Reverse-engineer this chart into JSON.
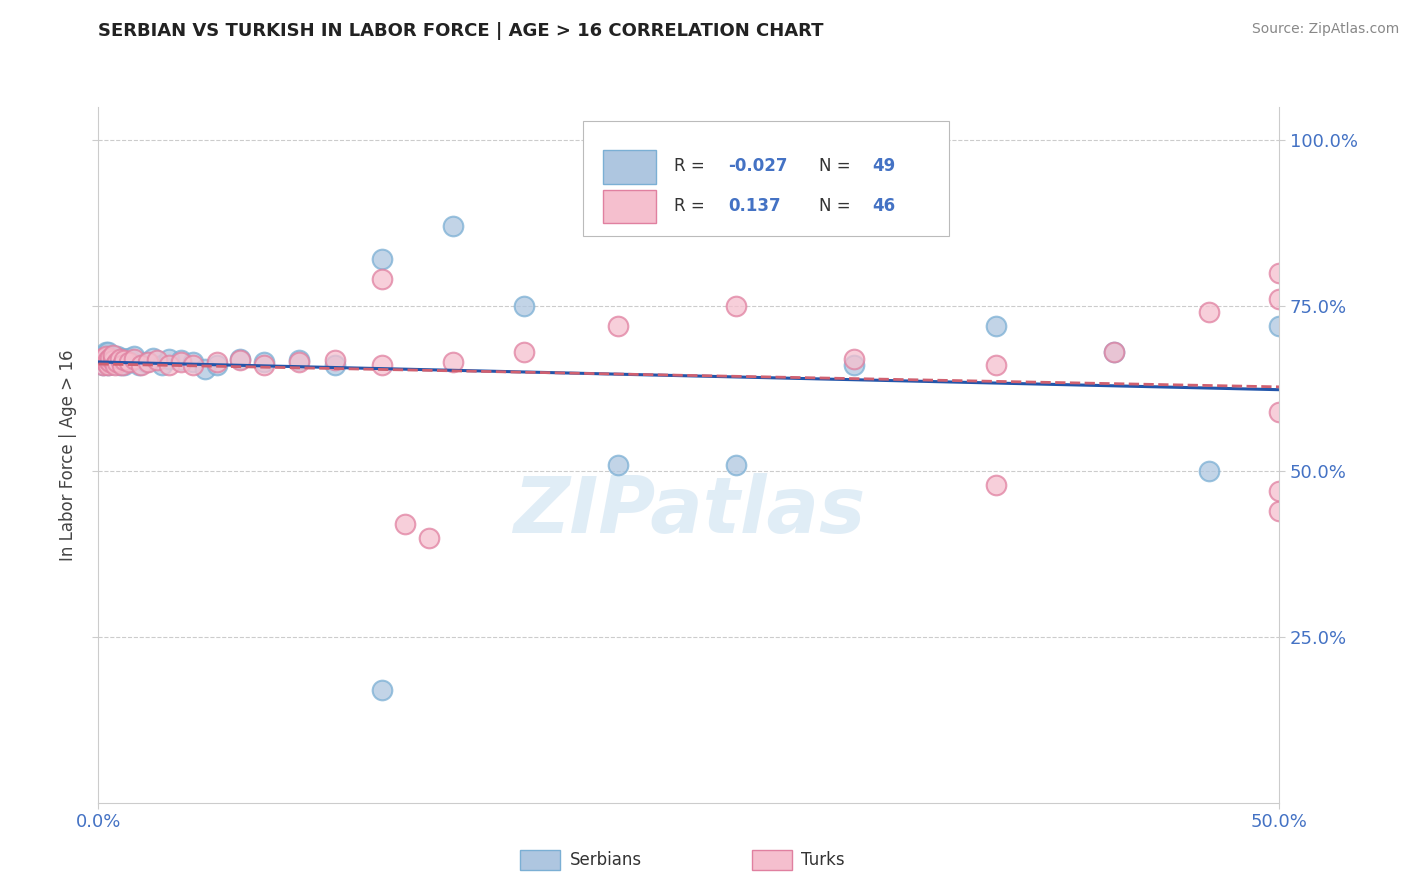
{
  "title": "SERBIAN VS TURKISH IN LABOR FORCE | AGE > 16 CORRELATION CHART",
  "source_text": "Source: ZipAtlas.com",
  "ylabel": "In Labor Force | Age > 16",
  "xlim": [
    0.0,
    0.5
  ],
  "ylim": [
    0.0,
    1.05
  ],
  "serbian_color": "#aec6e0",
  "serbian_edge_color": "#7bafd4",
  "turkish_color": "#f5bfce",
  "turkish_edge_color": "#e080a0",
  "serbian_R": -0.027,
  "serbian_N": 49,
  "turkish_R": 0.137,
  "turkish_N": 46,
  "trend_serbian_color": "#2255aa",
  "trend_turkish_color": "#d06070",
  "watermark_text": "ZIPatlas",
  "tick_color": "#4472c4",
  "serbian_x": [
    0.002,
    0.002,
    0.003,
    0.003,
    0.003,
    0.004,
    0.004,
    0.004,
    0.005,
    0.005,
    0.005,
    0.006,
    0.006,
    0.007,
    0.007,
    0.008,
    0.008,
    0.009,
    0.009,
    0.01,
    0.01,
    0.011,
    0.012,
    0.013,
    0.015,
    0.017,
    0.02,
    0.023,
    0.027,
    0.03,
    0.035,
    0.04,
    0.045,
    0.05,
    0.06,
    0.07,
    0.085,
    0.1,
    0.12,
    0.15,
    0.18,
    0.22,
    0.27,
    0.32,
    0.38,
    0.43,
    0.47,
    0.5,
    0.12
  ],
  "serbian_y": [
    0.66,
    0.67,
    0.665,
    0.672,
    0.68,
    0.66,
    0.672,
    0.68,
    0.665,
    0.67,
    0.675,
    0.662,
    0.67,
    0.665,
    0.672,
    0.668,
    0.675,
    0.66,
    0.668,
    0.665,
    0.672,
    0.66,
    0.668,
    0.672,
    0.675,
    0.66,
    0.665,
    0.672,
    0.66,
    0.67,
    0.668,
    0.665,
    0.655,
    0.66,
    0.67,
    0.665,
    0.668,
    0.66,
    0.82,
    0.87,
    0.75,
    0.51,
    0.51,
    0.66,
    0.72,
    0.68,
    0.5,
    0.72,
    0.17
  ],
  "turkish_x": [
    0.002,
    0.002,
    0.003,
    0.003,
    0.004,
    0.004,
    0.005,
    0.005,
    0.006,
    0.006,
    0.007,
    0.008,
    0.009,
    0.01,
    0.011,
    0.013,
    0.015,
    0.018,
    0.021,
    0.025,
    0.03,
    0.035,
    0.04,
    0.05,
    0.06,
    0.07,
    0.085,
    0.1,
    0.12,
    0.15,
    0.18,
    0.22,
    0.27,
    0.32,
    0.38,
    0.43,
    0.47,
    0.5,
    0.5,
    0.5,
    0.12,
    0.13,
    0.14,
    0.38,
    0.5,
    0.5
  ],
  "turkish_y": [
    0.66,
    0.672,
    0.665,
    0.675,
    0.66,
    0.668,
    0.665,
    0.672,
    0.668,
    0.676,
    0.66,
    0.665,
    0.67,
    0.66,
    0.668,
    0.665,
    0.67,
    0.66,
    0.665,
    0.668,
    0.66,
    0.665,
    0.66,
    0.665,
    0.668,
    0.66,
    0.665,
    0.668,
    0.66,
    0.665,
    0.68,
    0.72,
    0.75,
    0.67,
    0.66,
    0.68,
    0.74,
    0.76,
    0.59,
    0.8,
    0.79,
    0.42,
    0.4,
    0.48,
    0.44,
    0.47
  ]
}
